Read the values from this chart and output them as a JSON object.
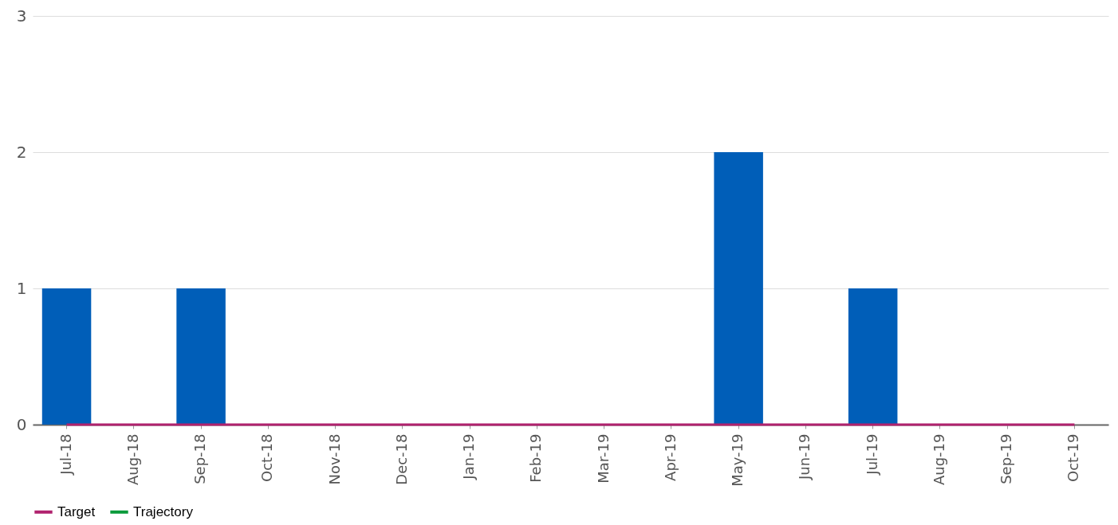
{
  "chart_data": {
    "type": "bar",
    "categories": [
      "Jul-18",
      "Aug-18",
      "Sep-18",
      "Oct-18",
      "Nov-18",
      "Dec-18",
      "Jan-19",
      "Feb-19",
      "Mar-19",
      "Apr-19",
      "May-19",
      "Jun-19",
      "Jul-19",
      "Aug-19",
      "Sep-19",
      "Oct-19"
    ],
    "series": [
      {
        "color": "#005eb8",
        "values": [
          1,
          0,
          1,
          0,
          0,
          0,
          0,
          0,
          0,
          0,
          2,
          0,
          1,
          0,
          0,
          0
        ]
      },
      {
        "type": "line",
        "name": "Target",
        "color": "#b0226e",
        "values": [
          0,
          0,
          0,
          0,
          0,
          0,
          0,
          0,
          0,
          0,
          0,
          0,
          0,
          0,
          0,
          0
        ]
      },
      {
        "type": "line",
        "name": "Trajectory",
        "color": "#0a9a3a",
        "values": [
          null,
          null,
          null,
          null,
          null,
          null,
          null,
          null,
          null,
          null,
          null,
          null,
          null,
          null,
          null,
          null
        ]
      }
    ],
    "ylim": [
      0,
      3
    ],
    "yticks": [
      0,
      1,
      2,
      3
    ],
    "grid": "y",
    "legend": "bottom"
  }
}
